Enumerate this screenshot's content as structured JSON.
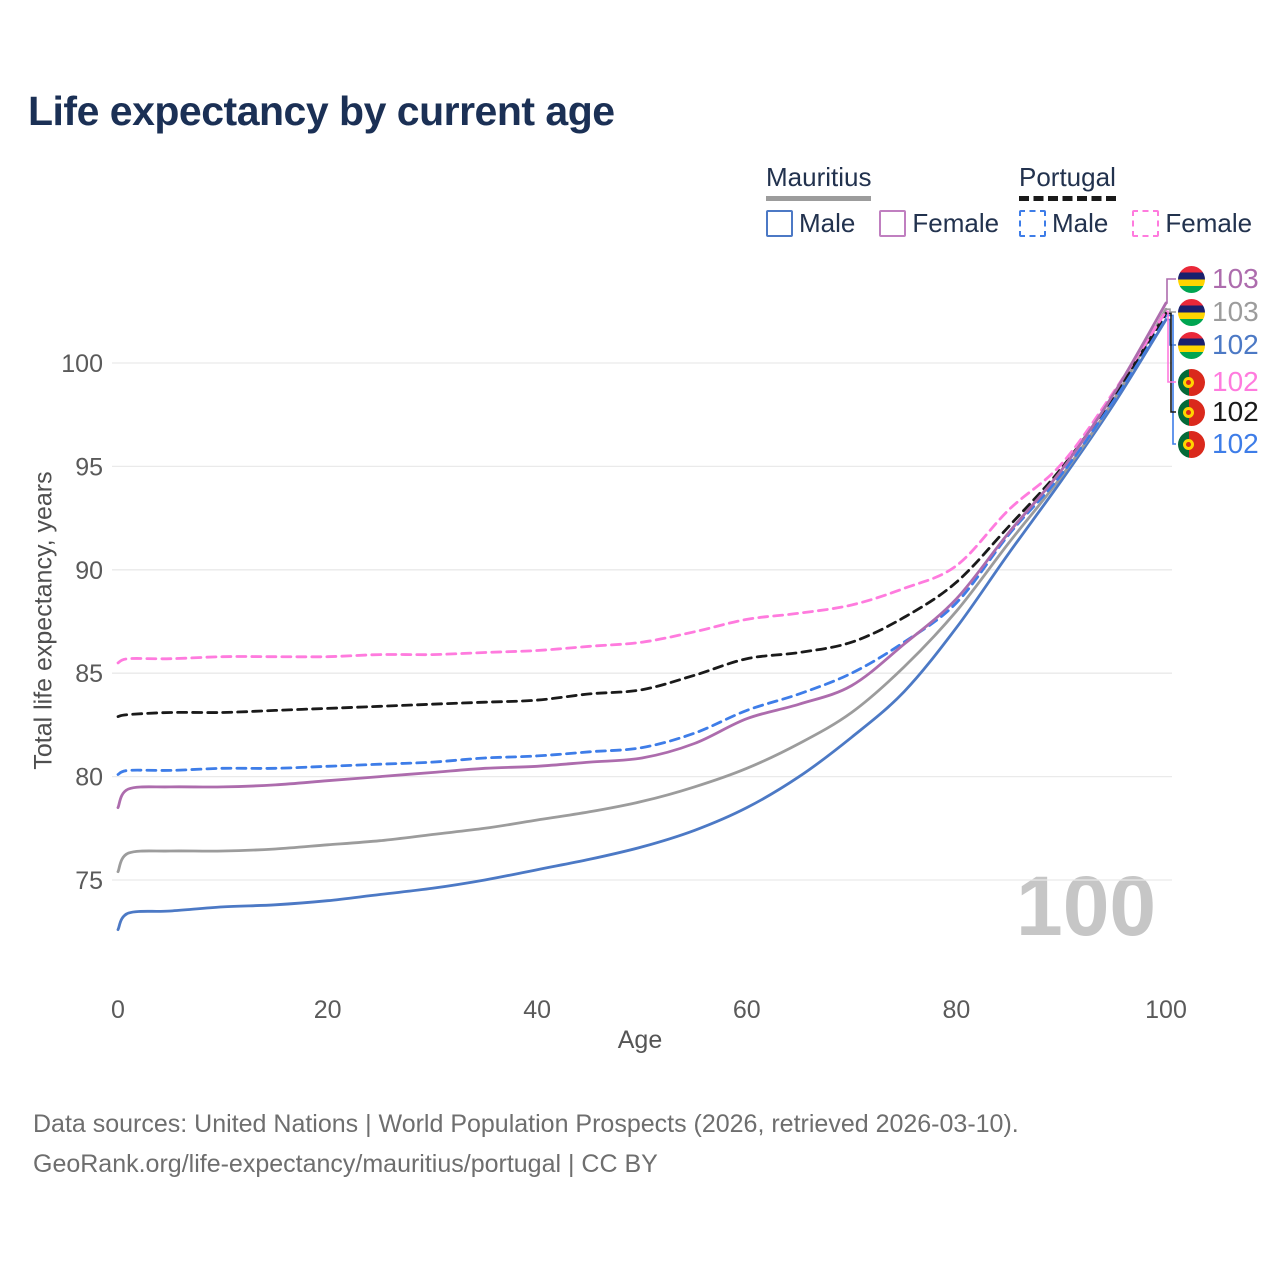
{
  "title": "Life expectancy by current age",
  "legend": {
    "groups": [
      {
        "label": "Mauritius",
        "line_style": "solid",
        "line_color": "#9c9c9c",
        "items": [
          {
            "label": "Male",
            "swatch_color": "#4c79c5",
            "swatch_style": "solid"
          },
          {
            "label": "Female",
            "swatch_color": "#c07fc0",
            "swatch_style": "solid"
          }
        ]
      },
      {
        "label": "Portugal",
        "line_style": "dashed",
        "line_color": "#1a1a1a",
        "items": [
          {
            "label": "Male",
            "swatch_color": "#3e7de8",
            "swatch_style": "dashed"
          },
          {
            "label": "Female",
            "swatch_color": "#ff7bde",
            "swatch_style": "dashed"
          }
        ]
      }
    ]
  },
  "watermark": "100",
  "axes": {
    "x": {
      "label": "Age",
      "ticks": [
        0,
        20,
        40,
        60,
        80,
        100
      ],
      "range": [
        0,
        100
      ]
    },
    "y": {
      "label": "Total life expectancy, years",
      "ticks": [
        75,
        80,
        85,
        90,
        95,
        100
      ]
    }
  },
  "footer": {
    "line1": "Data sources: United Nations | World Population Prospects (2026, retrieved 2026-03-10).",
    "line2": "GeoRank.org/life-expectancy/mauritius/portugal | CC BY"
  },
  "chart_data": {
    "type": "line",
    "title": "Life expectancy by current age",
    "xlabel": "Age",
    "ylabel": "Total life expectancy, years",
    "xlim": [
      0,
      100
    ],
    "ylim": [
      72,
      104
    ],
    "grid": "horizontal",
    "x": [
      0,
      1,
      5,
      10,
      15,
      20,
      25,
      30,
      35,
      40,
      45,
      50,
      55,
      60,
      65,
      70,
      75,
      80,
      85,
      90,
      95,
      100
    ],
    "series": [
      {
        "id": "mu_male",
        "name": "Mauritius Male",
        "style": "solid",
        "color": "#4c79c5",
        "end_label": "102",
        "flag": "mauritius",
        "values": [
          72.6,
          73.4,
          73.5,
          73.7,
          73.8,
          74.0,
          74.3,
          74.6,
          75.0,
          75.5,
          76.0,
          76.6,
          77.4,
          78.5,
          80.0,
          81.9,
          84.1,
          87.2,
          90.8,
          94.3,
          98.0,
          102.1
        ]
      },
      {
        "id": "mu_total",
        "name": "Mauritius",
        "style": "solid",
        "color": "#9c9c9c",
        "end_label": "103",
        "flag": "mauritius",
        "values": [
          75.4,
          76.3,
          76.4,
          76.4,
          76.5,
          76.7,
          76.9,
          77.2,
          77.5,
          77.9,
          78.3,
          78.8,
          79.5,
          80.4,
          81.6,
          83.1,
          85.3,
          88.0,
          91.3,
          94.5,
          98.2,
          102.6
        ]
      },
      {
        "id": "pt_male",
        "name": "Portugal Male",
        "style": "dashed",
        "color": "#3e7de8",
        "end_label": "102",
        "flag": "portugal",
        "values": [
          80.1,
          80.3,
          80.3,
          80.4,
          80.4,
          80.5,
          80.6,
          80.7,
          80.9,
          81.0,
          81.2,
          81.4,
          82.1,
          83.2,
          84.0,
          85.0,
          86.5,
          88.4,
          91.7,
          94.6,
          98.2,
          102.3
        ]
      },
      {
        "id": "pt_total",
        "name": "Portugal",
        "style": "dashed",
        "color": "#1a1a1a",
        "end_label": "102",
        "flag": "portugal",
        "values": [
          82.9,
          83.0,
          83.1,
          83.1,
          83.2,
          83.3,
          83.4,
          83.5,
          83.6,
          83.7,
          84.0,
          84.2,
          84.9,
          85.7,
          86.0,
          86.5,
          87.7,
          89.4,
          92.1,
          94.9,
          98.4,
          102.4
        ]
      },
      {
        "id": "pt_female",
        "name": "Portugal Female",
        "style": "dashed",
        "color": "#ff7bde",
        "end_label": "102",
        "flag": "portugal",
        "values": [
          85.5,
          85.7,
          85.7,
          85.8,
          85.8,
          85.8,
          85.9,
          85.9,
          86.0,
          86.1,
          86.3,
          86.5,
          87.0,
          87.6,
          87.9,
          88.3,
          89.1,
          90.2,
          92.9,
          95.1,
          98.6,
          102.5
        ]
      },
      {
        "id": "mu_female",
        "name": "Mauritius Female",
        "style": "solid",
        "color": "#ad6cad",
        "end_label": "103",
        "flag": "mauritius",
        "values": [
          78.5,
          79.4,
          79.5,
          79.5,
          79.6,
          79.8,
          80.0,
          80.2,
          80.4,
          80.5,
          80.7,
          80.9,
          81.6,
          82.8,
          83.5,
          84.4,
          86.4,
          88.6,
          91.8,
          94.8,
          98.5,
          102.9
        ]
      }
    ]
  }
}
